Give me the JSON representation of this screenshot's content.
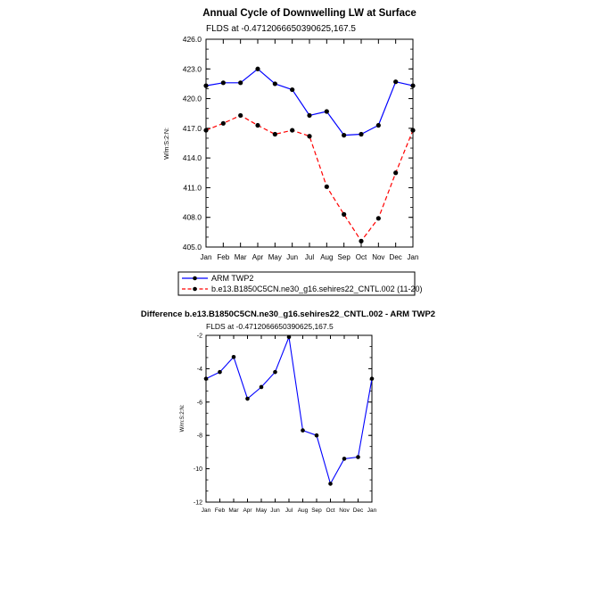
{
  "chart_data": [
    {
      "type": "line",
      "title": "Annual Cycle of Downwelling LW at Surface",
      "subtitle": "FLDS at -0.4712066650390625,167.5",
      "xlabel": "",
      "ylabel": "W/m:S:2:N:",
      "categories": [
        "Jan",
        "Feb",
        "Mar",
        "Apr",
        "May",
        "Jun",
        "Jul",
        "Aug",
        "Sep",
        "Oct",
        "Nov",
        "Dec",
        "Jan"
      ],
      "ylim": [
        405.0,
        426.0
      ],
      "yticks": [
        "405.0",
        "408.0",
        "411.0",
        "414.0",
        "417.0",
        "420.0",
        "423.0",
        "426.0"
      ],
      "series": [
        {
          "name": "ARM TWP2",
          "color": "#0000ff",
          "dash": "solid",
          "values": [
            421.3,
            421.6,
            421.6,
            423.0,
            421.5,
            420.9,
            418.3,
            418.7,
            416.3,
            416.4,
            417.3,
            421.7,
            421.3
          ]
        },
        {
          "name": "b.e13.B1850C5CN.ne30_g16.sehires22_CNTL.002 (11-20)",
          "color": "#ff0000",
          "dash": "dashed",
          "values": [
            416.8,
            417.5,
            418.3,
            417.3,
            416.4,
            416.8,
            416.2,
            411.1,
            408.3,
            405.6,
            407.9,
            412.5,
            416.8
          ]
        }
      ],
      "legend": "below"
    },
    {
      "type": "line",
      "title": "Difference b.e13.B1850C5CN.ne30_g16.sehires22_CNTL.002 - ARM TWP2",
      "subtitle": "FLDS at -0.4712066650390625,167.5",
      "xlabel": "",
      "ylabel": "W/m:S:2:N:",
      "categories": [
        "Jan",
        "Feb",
        "Mar",
        "Apr",
        "May",
        "Jun",
        "Jul",
        "Aug",
        "Sep",
        "Oct",
        "Nov",
        "Dec",
        "Jan"
      ],
      "ylim": [
        -12,
        -2
      ],
      "yticks": [
        "-12",
        "-10",
        "-8",
        "-6",
        "-4",
        "-2"
      ],
      "series": [
        {
          "color": "#0000ff",
          "values": [
            -4.6,
            -4.2,
            -3.3,
            -5.8,
            -5.1,
            -4.2,
            -2.1,
            -7.7,
            -8.0,
            -10.9,
            -9.4,
            -9.3,
            -4.6
          ]
        }
      ]
    }
  ]
}
